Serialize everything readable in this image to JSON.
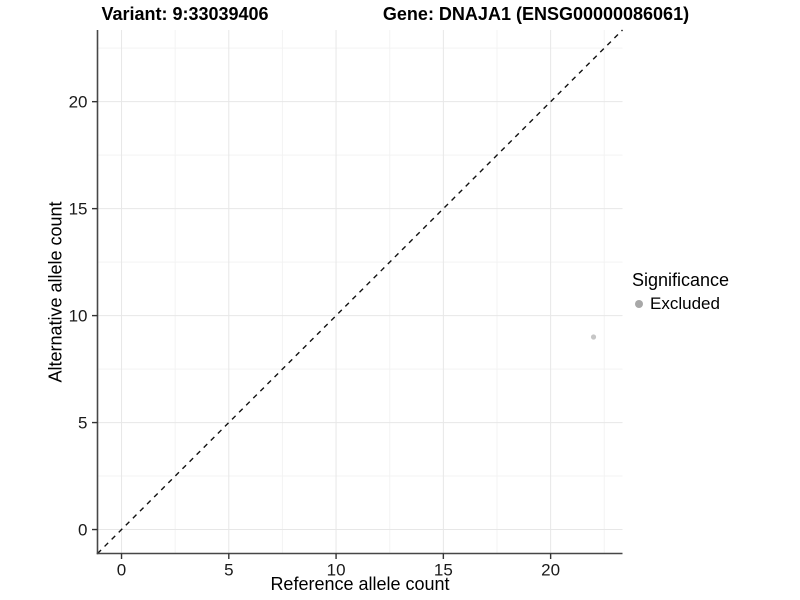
{
  "titles": {
    "variant": "Variant: 9:33039406",
    "gene": "Gene: DNAJA1 (ENSG00000086061)"
  },
  "chart_data": {
    "type": "scatter",
    "xlabel": "Reference allele count",
    "ylabel": "Alternative allele count",
    "xlim": [
      -1.12,
      23.35
    ],
    "ylim": [
      -1.12,
      23.35
    ],
    "xticks": [
      0,
      5,
      10,
      15,
      20
    ],
    "yticks": [
      0,
      5,
      10,
      15,
      20
    ],
    "minor_ticks": [
      2.5,
      7.5,
      12.5,
      17.5,
      22.5
    ],
    "grid": true,
    "points": [
      {
        "x": 22,
        "y": 9,
        "significance": "Excluded"
      }
    ],
    "identity_line": {
      "x1": -1.12,
      "y1": -1.12,
      "x2": 23.35,
      "y2": 23.35,
      "style": "dashed"
    },
    "legend": {
      "title": "Significance",
      "position": "right",
      "items": [
        {
          "label": "Excluded",
          "color": "#a8a8a8"
        }
      ]
    },
    "colors": {
      "point": "#c6c6c6",
      "grid_major": "#e7e7e7",
      "grid_minor": "#f3f3f3",
      "axis_line": "#474747",
      "tick_mark": "#333333",
      "identity_line": "#111111",
      "background": "#ffffff"
    }
  }
}
